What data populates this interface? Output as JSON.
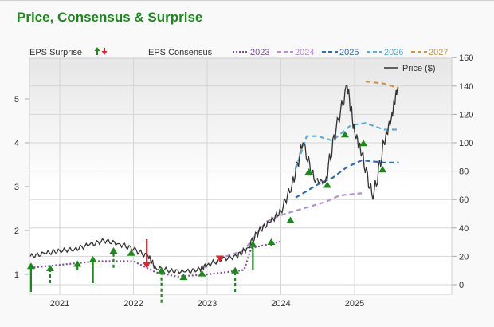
{
  "title": "Price, Consensus & Surprise",
  "legend": {
    "surprise_label": "EPS Surprise",
    "consensus_label": "EPS Consensus",
    "price_label": "Price ($)",
    "series": [
      {
        "name": "2023",
        "color": "#7b4f9d",
        "style": "dotted"
      },
      {
        "name": "2024",
        "color": "#b38ed1",
        "style": "dashed"
      },
      {
        "name": "2025",
        "color": "#2f6db5",
        "style": "dashed"
      },
      {
        "name": "2026",
        "color": "#5aaed6",
        "style": "dashed"
      },
      {
        "name": "2027",
        "color": "#c8964b",
        "style": "dashed"
      }
    ]
  },
  "colors": {
    "title": "#1a8a1a",
    "up_arrow": "#1a8a1a",
    "down_arrow": "#e8202a",
    "price": "#333333"
  },
  "axes": {
    "left_ticks": [
      "5",
      "4",
      "3",
      "2",
      "1"
    ],
    "right_ticks": [
      "160",
      "140",
      "120",
      "100",
      "80",
      "60",
      "40",
      "20",
      "0"
    ],
    "x_ticks": [
      "2021",
      "2022",
      "2023",
      "2024",
      "2025"
    ]
  },
  "chart_data": {
    "type": "line",
    "title": "Price, Consensus & Surprise",
    "xlabel": "",
    "ylabel_left": "EPS",
    "ylabel_right": "Price ($)",
    "xlim": [
      2020.6,
      2025.6
    ],
    "ylim_left": [
      0.55,
      5.9
    ],
    "ylim_right": [
      0,
      160
    ],
    "grid": true,
    "legend_position": "top",
    "price_series": {
      "name": "Price ($)",
      "x": [
        2020.6,
        2020.8,
        2021.0,
        2021.2,
        2021.4,
        2021.6,
        2021.8,
        2022.0,
        2022.2,
        2022.3,
        2022.5,
        2022.7,
        2022.9,
        2023.0,
        2023.2,
        2023.4,
        2023.55,
        2023.7,
        2023.85,
        2024.0,
        2024.15,
        2024.3,
        2024.45,
        2024.6,
        2024.75,
        2024.9,
        2025.0,
        2025.1,
        2025.25,
        2025.4,
        2025.5,
        2025.58
      ],
      "values": [
        20,
        22,
        24,
        25,
        28,
        31,
        29,
        25,
        20,
        12,
        10,
        9,
        11,
        14,
        18,
        20,
        26,
        38,
        44,
        52,
        70,
        100,
        74,
        72,
        110,
        140,
        108,
        92,
        60,
        100,
        118,
        138
      ]
    },
    "consensus_series": [
      {
        "name": "2023",
        "x": [
          2020.6,
          2021.5,
          2022.0,
          2022.3,
          2022.6,
          2023.0,
          2023.5,
          2023.6,
          2024.0
        ],
        "values": [
          1.15,
          1.3,
          1.3,
          1.05,
          0.95,
          1.0,
          1.1,
          1.6,
          1.75
        ]
      },
      {
        "name": "2024",
        "x": [
          2023.15,
          2023.5,
          2023.8,
          2024.0,
          2024.3,
          2024.6,
          2024.8,
          2025.1
        ],
        "values": [
          1.35,
          1.55,
          2.2,
          2.35,
          2.5,
          2.65,
          2.8,
          2.85
        ]
      },
      {
        "name": "2025",
        "x": [
          2024.2,
          2024.5,
          2024.7,
          2024.9,
          2025.1,
          2025.4,
          2025.6
        ],
        "values": [
          2.75,
          3.05,
          3.2,
          3.45,
          3.6,
          3.55,
          3.55
        ]
      },
      {
        "name": "2026",
        "x": [
          2024.2,
          2024.35,
          2024.5,
          2024.7,
          2024.95,
          2025.15,
          2025.4,
          2025.6
        ],
        "values": [
          3.4,
          4.15,
          4.15,
          4.05,
          4.4,
          4.45,
          4.3,
          4.3
        ]
      },
      {
        "name": "2027",
        "x": [
          2025.15,
          2025.4,
          2025.6
        ],
        "values": [
          5.4,
          5.35,
          5.25
        ]
      }
    ],
    "surprises": [
      {
        "x": 2020.61,
        "direction": "up",
        "style": "solid",
        "from": 0.6,
        "to": 1.25
      },
      {
        "x": 2020.87,
        "direction": "up",
        "style": "dashed",
        "from": 0.8,
        "to": 1.2
      },
      {
        "x": 2021.24,
        "direction": "up",
        "style": "dashed",
        "from": 1.1,
        "to": 1.3
      },
      {
        "x": 2021.45,
        "direction": "up",
        "style": "solid",
        "from": 0.8,
        "to": 1.4
      },
      {
        "x": 2021.73,
        "direction": "up",
        "style": "dashed",
        "from": 1.15,
        "to": 1.6
      },
      {
        "x": 2021.97,
        "direction": "up",
        "style": "solid",
        "from": 1.45,
        "to": 1.55
      },
      {
        "x": 2022.18,
        "direction": "down",
        "style": "solid",
        "from": 1.8,
        "to": 1.15
      },
      {
        "x": 2022.38,
        "direction": "up",
        "style": "dashed",
        "from": 0.35,
        "to": 1.15
      },
      {
        "x": 2022.68,
        "direction": "up",
        "style": "dashed",
        "from": 0.95,
        "to": 1.0
      },
      {
        "x": 2022.93,
        "direction": "up",
        "style": "solid",
        "from": 1.05,
        "to": 1.08
      },
      {
        "x": 2023.17,
        "direction": "down",
        "style": "solid",
        "from": 1.35,
        "to": 1.3
      },
      {
        "x": 2023.38,
        "direction": "up",
        "style": "dashed",
        "from": 0.6,
        "to": 1.15
      },
      {
        "x": 2023.62,
        "direction": "up",
        "style": "solid",
        "from": 1.1,
        "to": 1.75
      },
      {
        "x": 2023.87,
        "direction": "up",
        "style": "dashed",
        "from": 1.65,
        "to": 1.8
      },
      {
        "x": 2024.13,
        "direction": "up",
        "style": "solid",
        "from": 2.25,
        "to": 2.3
      },
      {
        "x": 2024.38,
        "direction": "up",
        "style": "solid",
        "from": 3.25,
        "to": 3.4
      },
      {
        "x": 2024.63,
        "direction": "up",
        "style": "solid",
        "from": 3.05,
        "to": 3.1
      },
      {
        "x": 2024.87,
        "direction": "up",
        "style": "solid",
        "from": 4.2,
        "to": 4.25
      },
      {
        "x": 2025.12,
        "direction": "up",
        "style": "solid",
        "from": 4.0,
        "to": 4.05
      },
      {
        "x": 2025.38,
        "direction": "up",
        "style": "solid",
        "from": 3.4,
        "to": 3.45
      }
    ]
  }
}
